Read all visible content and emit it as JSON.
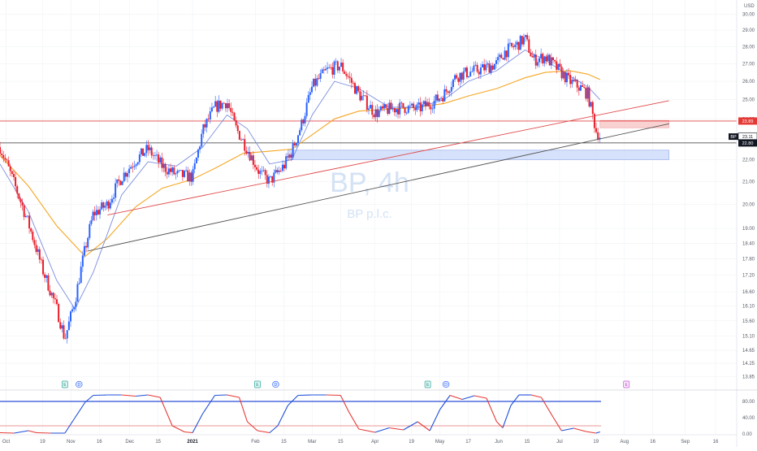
{
  "symbol": {
    "ticker": "BP",
    "interval_watermark": "BP, 4h",
    "company": "BP p.l.c.",
    "currency": "USD"
  },
  "colors": {
    "up": "#2962ff",
    "down": "#e91e2b",
    "ma_fast": "#7b8cde",
    "ma_slow": "#f5a623",
    "support_line": "#555555",
    "resistance_line": "#e04848",
    "demand_zone": "#cfdcfb",
    "supply_zone": "#f9caca",
    "osc_line_up": "#1e4fd8",
    "osc_line_down": "#e53935"
  },
  "price_badges": {
    "resistance": "23.89",
    "last": "23.11",
    "support": "22.80",
    "ticker_label": "BP"
  },
  "chart_data": {
    "type": "candlestick",
    "title": "",
    "y_axis": {
      "scale": "log",
      "range": [
        13.6,
        30.5
      ],
      "ticks": [
        "30.00",
        "29.00",
        "28.00",
        "27.00",
        "26.00",
        "25.00",
        "24.00",
        "23.00",
        "22.00",
        "21.00",
        "20.00",
        "19.00",
        "18.40",
        "17.80",
        "17.20",
        "16.60",
        "16.10",
        "15.60",
        "15.10",
        "14.65",
        "14.25",
        "13.85"
      ]
    },
    "x_axis": {
      "range": [
        "2020-09-28",
        "2021-09-22"
      ],
      "ticks": [
        {
          "label": "Oct",
          "date": "2020-10-01",
          "bold": false
        },
        {
          "label": "19",
          "date": "2020-10-19",
          "bold": false
        },
        {
          "label": "Nov",
          "date": "2020-11-02",
          "bold": false
        },
        {
          "label": "16",
          "date": "2020-11-16",
          "bold": false
        },
        {
          "label": "Dec",
          "date": "2020-12-01",
          "bold": false
        },
        {
          "label": "15",
          "date": "2020-12-15",
          "bold": false
        },
        {
          "label": "2021",
          "date": "2021-01-01",
          "bold": true
        },
        {
          "label": "Feb",
          "date": "2021-02-01",
          "bold": false
        },
        {
          "label": "15",
          "date": "2021-02-15",
          "bold": false
        },
        {
          "label": "Mar",
          "date": "2021-03-01",
          "bold": false
        },
        {
          "label": "15",
          "date": "2021-03-15",
          "bold": false
        },
        {
          "label": "Apr",
          "date": "2021-04-01",
          "bold": false
        },
        {
          "label": "19",
          "date": "2021-04-19",
          "bold": false
        },
        {
          "label": "May",
          "date": "2021-05-03",
          "bold": false
        },
        {
          "label": "17",
          "date": "2021-05-17",
          "bold": false
        },
        {
          "label": "Jun",
          "date": "2021-06-01",
          "bold": false
        },
        {
          "label": "15",
          "date": "2021-06-15",
          "bold": false
        },
        {
          "label": "Jul",
          "date": "2021-07-01",
          "bold": false
        },
        {
          "label": "19",
          "date": "2021-07-19",
          "bold": false
        },
        {
          "label": "Aug",
          "date": "2021-08-02",
          "bold": false
        },
        {
          "label": "16",
          "date": "2021-08-16",
          "bold": false
        },
        {
          "label": "Sep",
          "date": "2021-09-01",
          "bold": false
        },
        {
          "label": "16",
          "date": "2021-09-16",
          "bold": false
        }
      ]
    },
    "price_path": [
      [
        "2020-09-28",
        22.6
      ],
      [
        "2020-10-05",
        20.9
      ],
      [
        "2020-10-12",
        19.2
      ],
      [
        "2020-10-19",
        17.4
      ],
      [
        "2020-10-26",
        16.0
      ],
      [
        "2020-10-30",
        15.0
      ],
      [
        "2020-11-04",
        16.3
      ],
      [
        "2020-11-09",
        18.2
      ],
      [
        "2020-11-13",
        19.6
      ],
      [
        "2020-11-20",
        20.0
      ],
      [
        "2020-11-27",
        21.2
      ],
      [
        "2020-12-04",
        22.0
      ],
      [
        "2020-12-10",
        22.5
      ],
      [
        "2020-12-17",
        21.7
      ],
      [
        "2020-12-24",
        21.3
      ],
      [
        "2021-01-01",
        21.2
      ],
      [
        "2021-01-06",
        23.4
      ],
      [
        "2021-01-12",
        24.6
      ],
      [
        "2021-01-18",
        24.9
      ],
      [
        "2021-01-22",
        23.6
      ],
      [
        "2021-01-28",
        22.5
      ],
      [
        "2021-02-03",
        21.4
      ],
      [
        "2021-02-08",
        21.0
      ],
      [
        "2021-02-15",
        21.7
      ],
      [
        "2021-02-19",
        22.4
      ],
      [
        "2021-02-24",
        23.8
      ],
      [
        "2021-03-01",
        25.7
      ],
      [
        "2021-03-08",
        26.6
      ],
      [
        "2021-03-15",
        26.9
      ],
      [
        "2021-03-19",
        26.2
      ],
      [
        "2021-03-24",
        25.3
      ],
      [
        "2021-04-01",
        24.3
      ],
      [
        "2021-04-08",
        24.5
      ],
      [
        "2021-04-15",
        24.6
      ],
      [
        "2021-04-22",
        24.5
      ],
      [
        "2021-04-30",
        24.9
      ],
      [
        "2021-05-05",
        25.3
      ],
      [
        "2021-05-11",
        26.3
      ],
      [
        "2021-05-17",
        26.5
      ],
      [
        "2021-05-24",
        26.7
      ],
      [
        "2021-05-31",
        27.0
      ],
      [
        "2021-06-04",
        27.7
      ],
      [
        "2021-06-10",
        28.1
      ],
      [
        "2021-06-14",
        28.5
      ],
      [
        "2021-06-18",
        27.2
      ],
      [
        "2021-06-24",
        27.4
      ],
      [
        "2021-06-30",
        26.7
      ],
      [
        "2021-07-06",
        26.0
      ],
      [
        "2021-07-12",
        25.6
      ],
      [
        "2021-07-15",
        25.3
      ],
      [
        "2021-07-19",
        23.4
      ],
      [
        "2021-07-21",
        23.11
      ]
    ],
    "moving_average_fast_path": [
      [
        "2020-09-28",
        21.8
      ],
      [
        "2020-10-12",
        19.7
      ],
      [
        "2020-10-26",
        17.0
      ],
      [
        "2020-11-04",
        16.0
      ],
      [
        "2020-11-13",
        17.3
      ],
      [
        "2020-11-27",
        20.4
      ],
      [
        "2020-12-10",
        21.9
      ],
      [
        "2020-12-24",
        21.7
      ],
      [
        "2021-01-06",
        22.6
      ],
      [
        "2021-01-18",
        24.2
      ],
      [
        "2021-01-28",
        23.5
      ],
      [
        "2021-02-08",
        21.8
      ],
      [
        "2021-02-19",
        22.0
      ],
      [
        "2021-03-01",
        24.2
      ],
      [
        "2021-03-12",
        26.0
      ],
      [
        "2021-03-24",
        25.6
      ],
      [
        "2021-04-08",
        24.6
      ],
      [
        "2021-04-22",
        24.6
      ],
      [
        "2021-05-05",
        25.0
      ],
      [
        "2021-05-17",
        26.0
      ],
      [
        "2021-05-31",
        26.6
      ],
      [
        "2021-06-14",
        27.8
      ],
      [
        "2021-06-24",
        27.2
      ],
      [
        "2021-07-06",
        26.3
      ],
      [
        "2021-07-15",
        25.7
      ],
      [
        "2021-07-21",
        25.0
      ]
    ],
    "moving_average_slow_path": [
      [
        "2020-09-28",
        22.2
      ],
      [
        "2020-10-12",
        20.8
      ],
      [
        "2020-10-26",
        19.1
      ],
      [
        "2020-11-09",
        17.9
      ],
      [
        "2020-11-20",
        18.6
      ],
      [
        "2020-12-04",
        19.9
      ],
      [
        "2020-12-17",
        20.7
      ],
      [
        "2021-01-01",
        21.1
      ],
      [
        "2021-01-12",
        21.6
      ],
      [
        "2021-01-26",
        22.3
      ],
      [
        "2021-02-08",
        22.4
      ],
      [
        "2021-02-19",
        22.5
      ],
      [
        "2021-03-01",
        23.2
      ],
      [
        "2021-03-12",
        24.0
      ],
      [
        "2021-03-24",
        24.4
      ],
      [
        "2021-04-08",
        24.5
      ],
      [
        "2021-04-22",
        24.6
      ],
      [
        "2021-05-05",
        24.8
      ],
      [
        "2021-05-17",
        25.2
      ],
      [
        "2021-05-31",
        25.6
      ],
      [
        "2021-06-14",
        26.2
      ],
      [
        "2021-06-24",
        26.5
      ],
      [
        "2021-07-06",
        26.6
      ],
      [
        "2021-07-15",
        26.4
      ],
      [
        "2021-07-21",
        26.1
      ]
    ],
    "support_trendline": {
      "from": [
        "2020-11-10",
        18.1
      ],
      "to": [
        "2021-08-24",
        23.75
      ]
    },
    "resistance_trendline": {
      "from": [
        "2020-11-20",
        19.55
      ],
      "to": [
        "2021-08-24",
        24.95
      ]
    },
    "horizontal_levels": [
      {
        "name": "resistance",
        "value": 23.89
      },
      {
        "name": "support",
        "value": 22.8
      }
    ],
    "zones": [
      {
        "name": "demand-zone",
        "from": "2021-02-17",
        "to": "2021-08-24",
        "low": 22.0,
        "high": 22.45
      },
      {
        "name": "supply-zone",
        "from": "2021-07-21",
        "to": "2021-08-24",
        "low": 23.55,
        "high": 23.92
      }
    ],
    "event_markers": [
      {
        "label": "E",
        "date": "2020-10-30",
        "kind": "earnings"
      },
      {
        "label": "D",
        "date": "2020-11-06",
        "kind": "dividend"
      },
      {
        "label": "E",
        "date": "2021-02-02",
        "kind": "earnings"
      },
      {
        "label": "D",
        "date": "2021-02-11",
        "kind": "dividend"
      },
      {
        "label": "E",
        "date": "2021-04-27",
        "kind": "earnings"
      },
      {
        "label": "D",
        "date": "2021-05-06",
        "kind": "dividend"
      },
      {
        "label": "E",
        "date": "2021-08-03",
        "kind": "upcoming"
      }
    ],
    "oscillator": {
      "y_range": [
        0,
        100
      ],
      "ticks": [
        "80.00",
        "40.00",
        "0.00"
      ],
      "upper_level": 80,
      "lower_level": 20,
      "path": [
        [
          "2020-09-28",
          3
        ],
        [
          "2020-10-05",
          2
        ],
        [
          "2020-10-12",
          8
        ],
        [
          "2020-10-16",
          3
        ],
        [
          "2020-10-23",
          2
        ],
        [
          "2020-10-30",
          2
        ],
        [
          "2020-11-04",
          40
        ],
        [
          "2020-11-09",
          78
        ],
        [
          "2020-11-13",
          95
        ],
        [
          "2020-11-20",
          96
        ],
        [
          "2020-11-27",
          96
        ],
        [
          "2020-12-04",
          93
        ],
        [
          "2020-12-10",
          96
        ],
        [
          "2020-12-16",
          90
        ],
        [
          "2020-12-22",
          20
        ],
        [
          "2020-12-28",
          5
        ],
        [
          "2021-01-01",
          3
        ],
        [
          "2021-01-06",
          50
        ],
        [
          "2021-01-12",
          95
        ],
        [
          "2021-01-18",
          96
        ],
        [
          "2021-01-24",
          90
        ],
        [
          "2021-01-28",
          30
        ],
        [
          "2021-02-02",
          8
        ],
        [
          "2021-02-08",
          3
        ],
        [
          "2021-02-12",
          20
        ],
        [
          "2021-02-17",
          70
        ],
        [
          "2021-02-22",
          95
        ],
        [
          "2021-03-01",
          96
        ],
        [
          "2021-03-08",
          96
        ],
        [
          "2021-03-15",
          95
        ],
        [
          "2021-03-19",
          55
        ],
        [
          "2021-03-24",
          12
        ],
        [
          "2021-04-01",
          4
        ],
        [
          "2021-04-08",
          15
        ],
        [
          "2021-04-15",
          10
        ],
        [
          "2021-04-22",
          30
        ],
        [
          "2021-04-28",
          8
        ],
        [
          "2021-05-03",
          60
        ],
        [
          "2021-05-08",
          95
        ],
        [
          "2021-05-14",
          85
        ],
        [
          "2021-05-20",
          94
        ],
        [
          "2021-05-26",
          88
        ],
        [
          "2021-05-31",
          30
        ],
        [
          "2021-06-03",
          15
        ],
        [
          "2021-06-07",
          70
        ],
        [
          "2021-06-11",
          96
        ],
        [
          "2021-06-17",
          96
        ],
        [
          "2021-06-22",
          90
        ],
        [
          "2021-06-28",
          40
        ],
        [
          "2021-07-02",
          8
        ],
        [
          "2021-07-08",
          14
        ],
        [
          "2021-07-14",
          6
        ],
        [
          "2021-07-19",
          2
        ],
        [
          "2021-07-21",
          5
        ]
      ]
    }
  }
}
